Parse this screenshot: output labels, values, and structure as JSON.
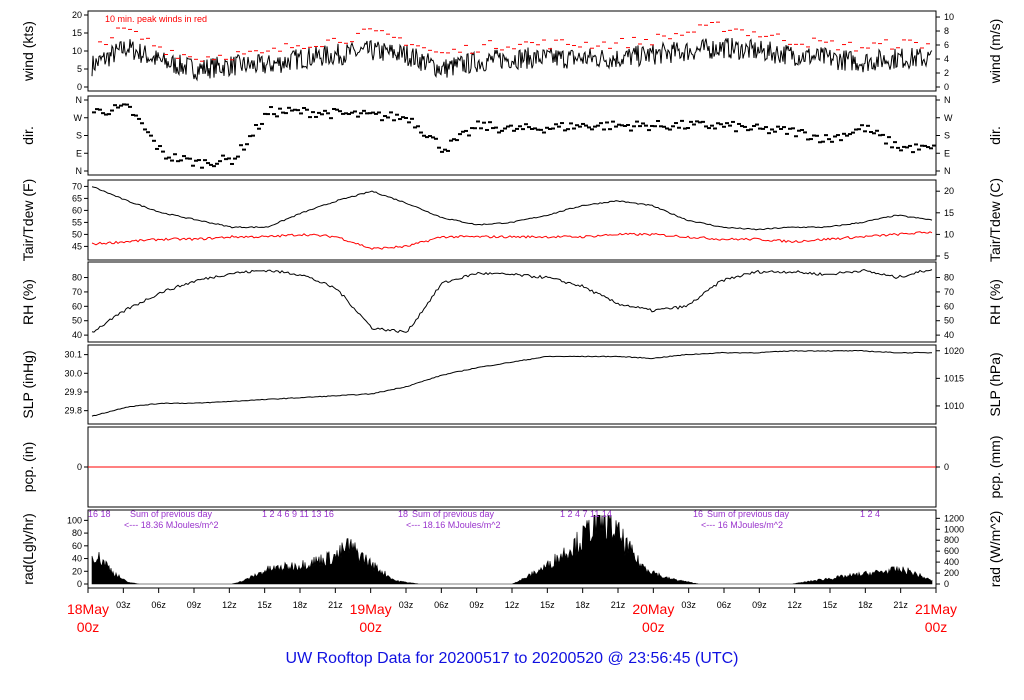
{
  "title": "UW Rooftop Data for 20200517  to  20200520 @ 23:56:45  (UTC)",
  "colors": {
    "title": "#1010e0",
    "peak": "#ff0000",
    "dew": "#ff0000",
    "day_label": "#ff0000",
    "rad_note": "#9933cc"
  },
  "chart_data": [
    {
      "type": "line",
      "id": "wind",
      "ylabel_left": "wind (kts)",
      "ylabel_right": "wind (m/s)",
      "ylim": [
        0,
        20
      ],
      "yticks_left": [
        "0",
        "5",
        "10",
        "15",
        "20"
      ],
      "yticks_right": [
        "0",
        "2",
        "4",
        "6",
        "8",
        "10"
      ],
      "annotation": "10 min. peak winds in red",
      "series": [
        {
          "name": "",
          "x_hours": [
            0,
            3,
            6,
            9,
            12,
            15,
            18,
            21,
            24,
            27,
            30,
            33,
            36,
            39,
            42,
            45,
            48,
            51,
            54,
            57,
            60,
            63,
            66,
            69,
            72
          ],
          "values": [
            6,
            11,
            7,
            5,
            6,
            6,
            8,
            9,
            10,
            9,
            5,
            7,
            8,
            8,
            8,
            8,
            9,
            10,
            11,
            10,
            9,
            8,
            7,
            8,
            8
          ]
        },
        {
          "name": "",
          "x_hours": [
            0,
            3,
            6,
            9,
            12,
            15,
            18,
            21,
            24,
            27,
            30,
            33,
            36,
            39,
            42,
            45,
            48,
            51,
            54,
            57,
            60,
            63,
            66,
            69,
            72
          ],
          "values": [
            11,
            16,
            11,
            8,
            9,
            9,
            12,
            13,
            15,
            13,
            9,
            11,
            12,
            12,
            12,
            12,
            13,
            15,
            17,
            15,
            13,
            12,
            11,
            12,
            12
          ]
        }
      ]
    },
    {
      "type": "scatter",
      "id": "dir",
      "ylabel_left": "dir.",
      "ylabel_right": "dir.",
      "yticks_left": [
        "N",
        "E",
        "S",
        "W",
        "N"
      ],
      "yticks_right": [
        "N",
        "E",
        "S",
        "W",
        "N"
      ],
      "ylim": [
        0,
        360
      ],
      "series": [
        {
          "name": "",
          "x_hours": [
            0,
            3,
            6,
            9,
            12,
            15,
            18,
            21,
            24,
            27,
            30,
            33,
            36,
            39,
            42,
            45,
            48,
            51,
            54,
            57,
            60,
            63,
            66,
            69,
            72
          ],
          "values": [
            300,
            320,
            80,
            40,
            60,
            300,
            300,
            290,
            280,
            270,
            110,
            230,
            210,
            220,
            230,
            230,
            230,
            230,
            230,
            210,
            200,
            160,
            220,
            120,
            110
          ]
        }
      ]
    },
    {
      "type": "line",
      "id": "temp",
      "ylabel_left": "Tair/Tdew (F)",
      "ylabel_right": "Tair/Tdew (C)",
      "ylim": [
        41,
        71
      ],
      "yticks_left": [
        "45",
        "50",
        "55",
        "60",
        "65",
        "70"
      ],
      "yticks_right": [
        "5",
        "10",
        "15",
        "20"
      ],
      "series": [
        {
          "name": "",
          "x_hours": [
            0,
            3,
            6,
            9,
            12,
            15,
            18,
            21,
            24,
            27,
            30,
            33,
            36,
            39,
            42,
            45,
            48,
            51,
            54,
            57,
            60,
            63,
            66,
            69,
            72
          ],
          "values": [
            70,
            64,
            59,
            56,
            53,
            53,
            59,
            64,
            68,
            63,
            57,
            54,
            55,
            58,
            62,
            64,
            62,
            56,
            53,
            52,
            53,
            53,
            55,
            58,
            56
          ]
        },
        {
          "name": "",
          "x_hours": [
            0,
            3,
            6,
            9,
            12,
            15,
            18,
            21,
            24,
            27,
            30,
            33,
            36,
            39,
            42,
            45,
            48,
            51,
            54,
            57,
            60,
            63,
            66,
            69,
            72
          ],
          "values": [
            46,
            47,
            48,
            48,
            49,
            49,
            50,
            49,
            44,
            45,
            49,
            49,
            49,
            49,
            49,
            50,
            50,
            49,
            48,
            48,
            47,
            48,
            49,
            50,
            51
          ]
        }
      ]
    },
    {
      "type": "line",
      "id": "rh",
      "ylabel_left": "RH (%)",
      "ylabel_right": "RH (%)",
      "ylim": [
        38,
        88
      ],
      "yticks_left": [
        "40",
        "50",
        "60",
        "70",
        "80"
      ],
      "yticks_right": [
        "40",
        "50",
        "60",
        "70",
        "80"
      ],
      "series": [
        {
          "name": "",
          "x_hours": [
            0,
            3,
            6,
            9,
            12,
            15,
            18,
            21,
            24,
            27,
            30,
            33,
            36,
            39,
            42,
            45,
            48,
            51,
            54,
            57,
            60,
            63,
            66,
            69,
            72
          ],
          "values": [
            42,
            58,
            70,
            78,
            83,
            85,
            82,
            72,
            45,
            42,
            76,
            83,
            82,
            80,
            74,
            62,
            57,
            60,
            78,
            84,
            84,
            82,
            85,
            80,
            86
          ]
        }
      ]
    },
    {
      "type": "line",
      "id": "slp",
      "ylabel_left": "SLP (inHg)",
      "ylabel_right": "SLP (hPa)",
      "ylim": [
        29.75,
        30.13
      ],
      "yticks_left": [
        "29.8",
        "29.9",
        "30.0",
        "30.1"
      ],
      "yticks_right": [
        "1010",
        "1015",
        "1020"
      ],
      "series": [
        {
          "name": "",
          "x_hours": [
            0,
            3,
            6,
            9,
            12,
            15,
            18,
            21,
            24,
            27,
            30,
            33,
            36,
            39,
            42,
            45,
            48,
            51,
            54,
            57,
            60,
            63,
            66,
            69,
            72
          ],
          "values": [
            29.77,
            29.82,
            29.84,
            29.84,
            29.85,
            29.86,
            29.87,
            29.88,
            29.89,
            29.93,
            29.99,
            30.03,
            30.06,
            30.09,
            30.09,
            30.09,
            30.08,
            30.1,
            30.11,
            30.11,
            30.12,
            30.12,
            30.12,
            30.11,
            30.11
          ]
        }
      ]
    },
    {
      "type": "line",
      "id": "pcp",
      "ylabel_left": "pcp. (in)",
      "ylabel_right": "pcp. (mm)",
      "yticks_left": [
        "0"
      ],
      "yticks_right": [
        "0"
      ],
      "ylim": [
        -1,
        1
      ],
      "series": [
        {
          "name": "",
          "x_hours": [
            0,
            72
          ],
          "values": [
            0,
            0
          ]
        }
      ]
    },
    {
      "type": "area",
      "id": "rad",
      "ylabel_left": "rad(Lgly/hr)",
      "ylabel_right": "rad (W/m^2)",
      "ylim": [
        0,
        110
      ],
      "yticks_left": [
        "0",
        "20",
        "40",
        "60",
        "80",
        "100"
      ],
      "yticks_right": [
        "0",
        "200",
        "400",
        "600",
        "800",
        "1000",
        "1200"
      ],
      "daily_notes": [
        {
          "hours_label": "16  18",
          "sum_label": "Sum of previous day",
          "value_label": "<--- 18.36 MJoules/m^2"
        },
        {
          "hours_label": "1   2   4   6   9  11  13  16",
          "sum_label": "",
          "value_label": ""
        },
        {
          "hours_label": "18",
          "sum_label": "Sum of previous day",
          "value_label": "<--- 18.16 MJoules/m^2"
        },
        {
          "hours_label": "1   2   4   7   11  14",
          "sum_label": "",
          "value_label": ""
        },
        {
          "hours_label": "16",
          "sum_label": "Sum of previous day",
          "value_label": "<--- 16 MJoules/m^2"
        },
        {
          "hours_label": "1   2   4",
          "sum_label": "",
          "value_label": ""
        }
      ],
      "series": [
        {
          "name": "",
          "x_hours": [
            0,
            1,
            2,
            3,
            4,
            12,
            13,
            15,
            18,
            21,
            22,
            24,
            26,
            28,
            36,
            37,
            39,
            42,
            43,
            44,
            45,
            47,
            49,
            52,
            60,
            63,
            66,
            69,
            70,
            72
          ],
          "values": [
            48,
            35,
            15,
            3,
            0,
            0,
            5,
            22,
            30,
            44,
            60,
            30,
            5,
            0,
            0,
            8,
            28,
            70,
            95,
            100,
            80,
            30,
            10,
            0,
            0,
            8,
            15,
            22,
            20,
            5
          ]
        }
      ]
    }
  ],
  "xaxis": {
    "hour_ticks": [
      "03z",
      "06z",
      "09z",
      "12z",
      "15z",
      "18z",
      "21z",
      "03z",
      "06z",
      "09z",
      "12z",
      "15z",
      "18z",
      "21z",
      "03z",
      "06z",
      "09z",
      "12z",
      "15z",
      "18z",
      "21z"
    ],
    "day_labels": [
      {
        "date": "18May",
        "time": "00z"
      },
      {
        "date": "19May",
        "time": "00z"
      },
      {
        "date": "20May",
        "time": "00z"
      },
      {
        "date": "21May",
        "time": "00z"
      }
    ]
  }
}
